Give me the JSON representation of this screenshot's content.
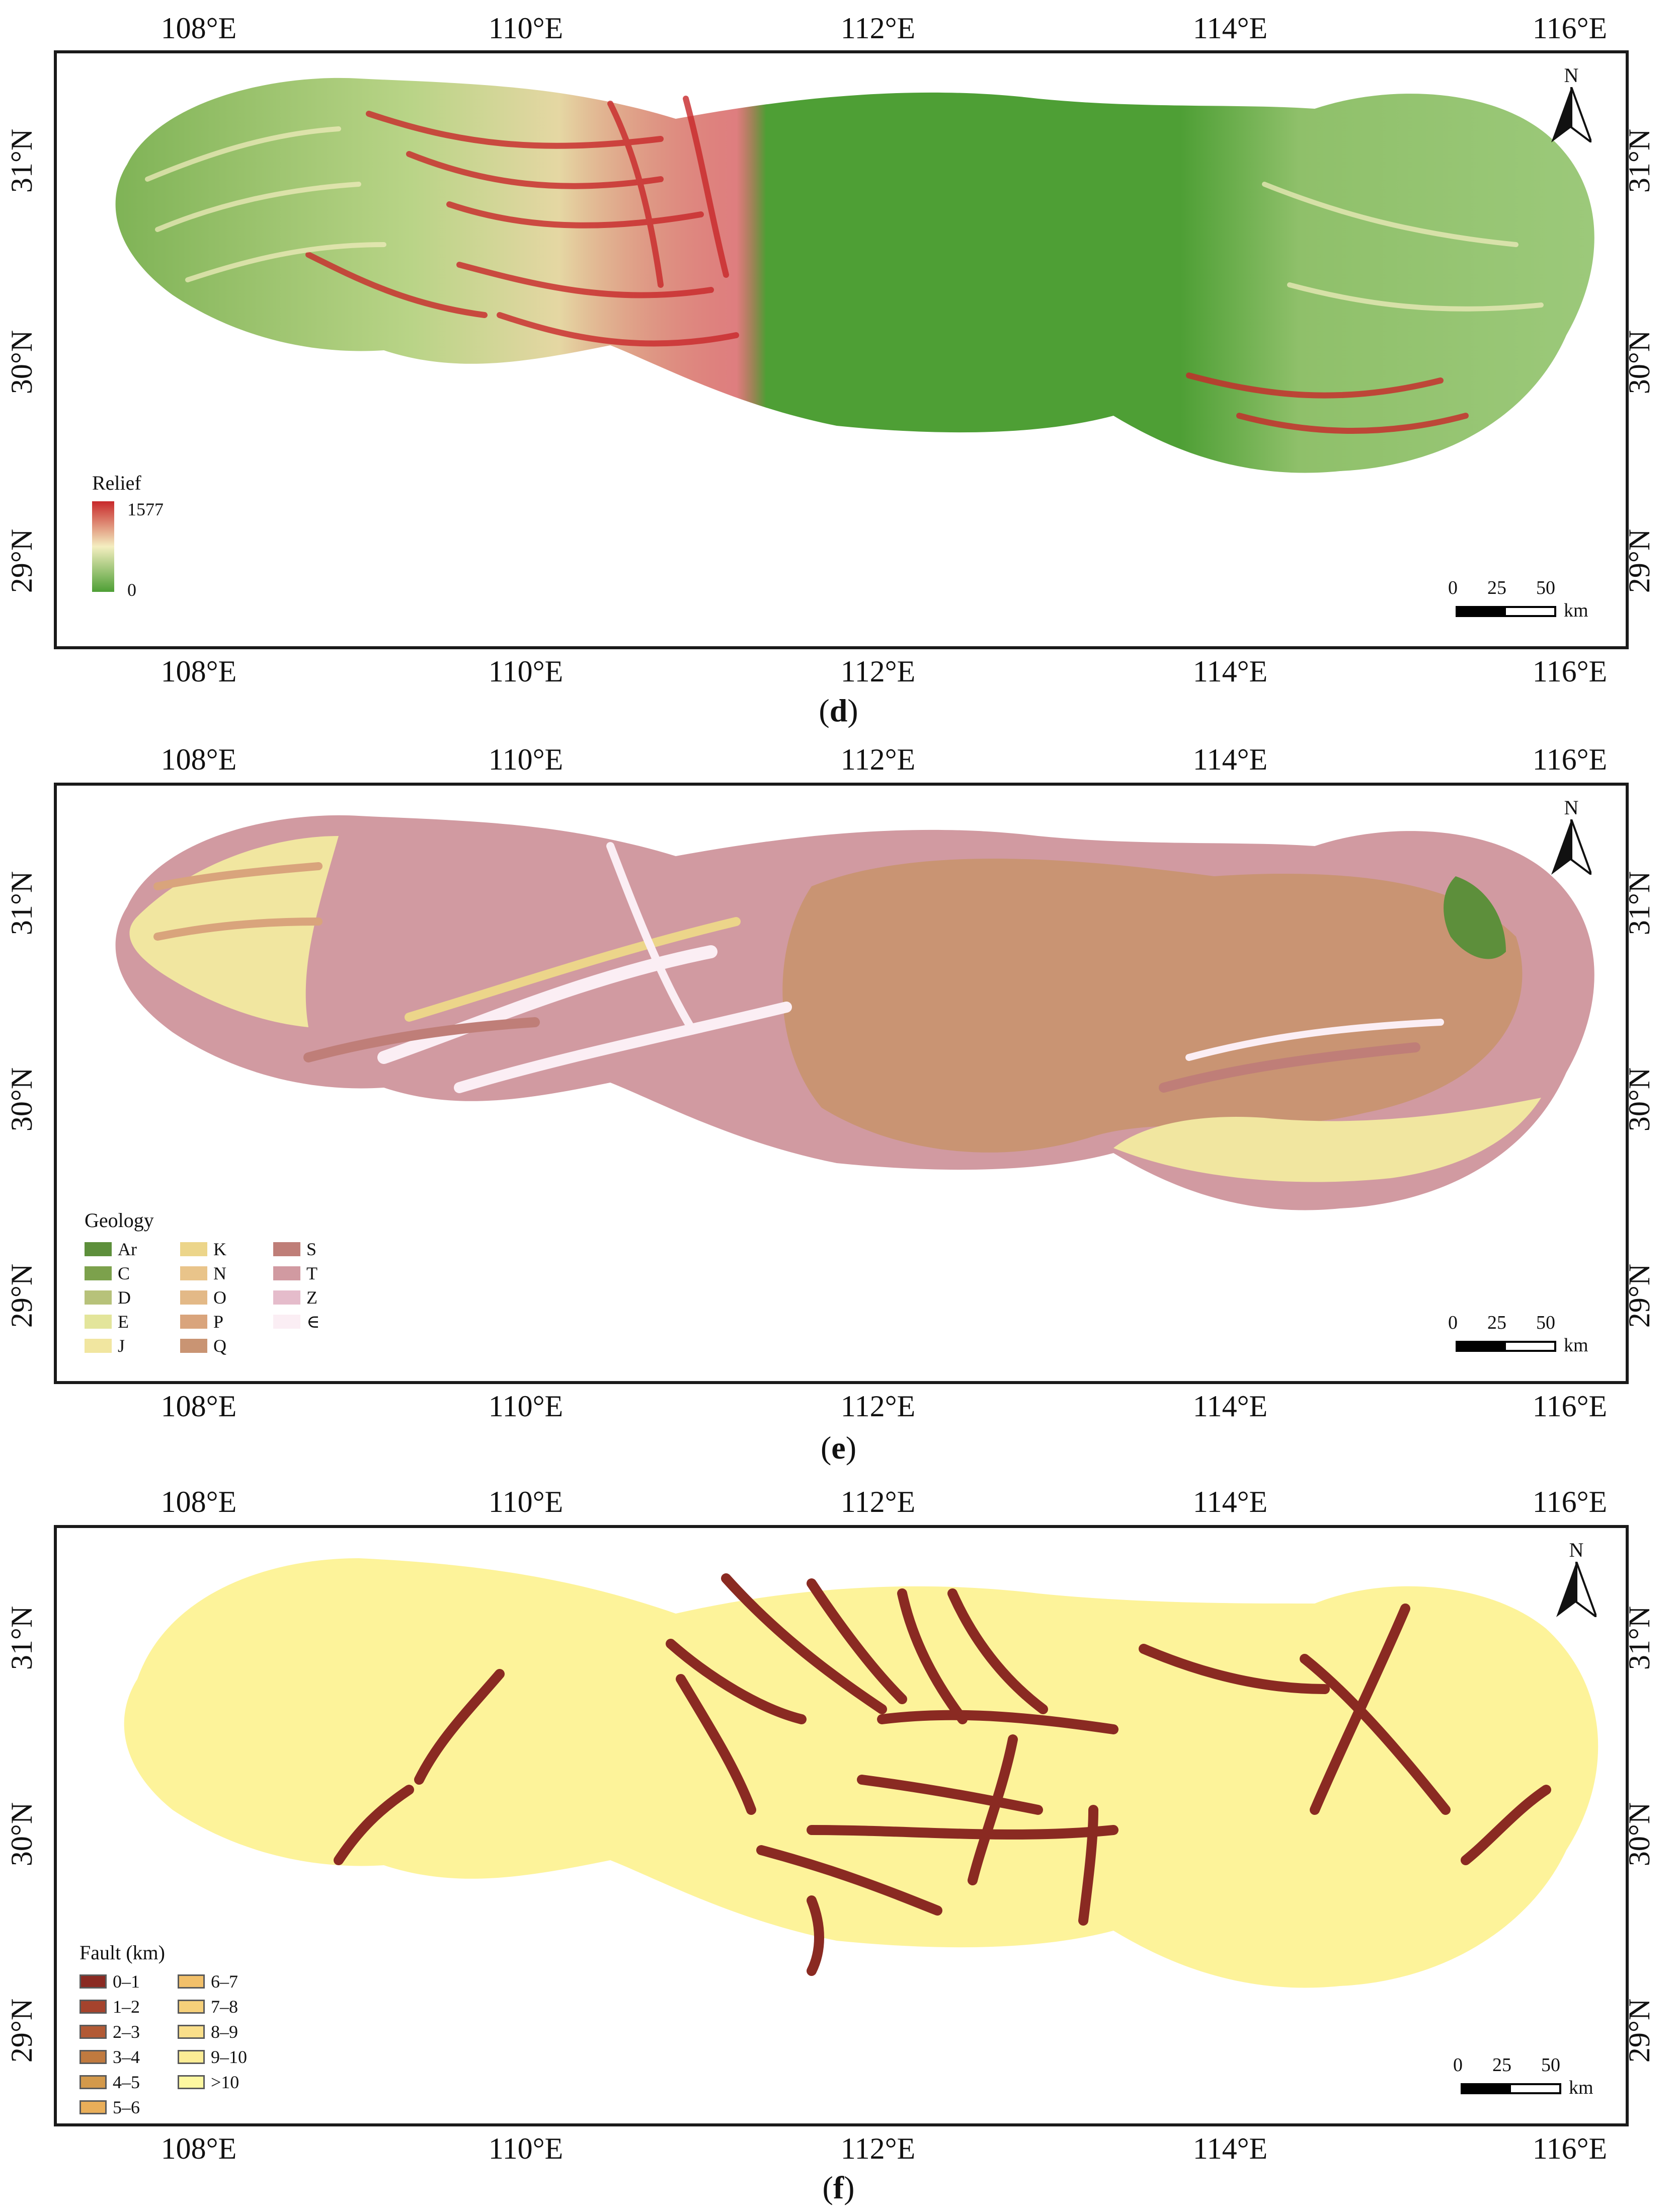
{
  "lon_ticks": [
    "108°E",
    "110°E",
    "112°E",
    "114°E",
    "116°E"
  ],
  "lat_ticks": [
    "29°N",
    "30°N",
    "31°N"
  ],
  "north_label": "N",
  "scale": {
    "labels": [
      "0",
      "25",
      "50"
    ],
    "unit": "km"
  },
  "panels": {
    "d": {
      "caption_open": "(",
      "caption_letter": "d",
      "caption_close": ")",
      "legend_title": "Relief",
      "legend_max": "1577",
      "legend_min": "0",
      "colors": {
        "high": "#c8282a",
        "mid": "#f4eec0",
        "low": "#4e9f35"
      }
    },
    "e": {
      "caption_open": "(",
      "caption_letter": "e",
      "caption_close": ")",
      "legend_title": "Geology",
      "units": [
        {
          "code": "Ar",
          "color": "#5d8f3b"
        },
        {
          "code": "C",
          "color": "#7ca14c"
        },
        {
          "code": "D",
          "color": "#b7c27a"
        },
        {
          "code": "E",
          "color": "#e3e59b"
        },
        {
          "code": "J",
          "color": "#f1e6a0"
        },
        {
          "code": "K",
          "color": "#ecd58a"
        },
        {
          "code": "N",
          "color": "#e9c48a"
        },
        {
          "code": "O",
          "color": "#e3b987"
        },
        {
          "code": "P",
          "color": "#d9a47c"
        },
        {
          "code": "Q",
          "color": "#c99473"
        },
        {
          "code": "S",
          "color": "#bf7e78"
        },
        {
          "code": "T",
          "color": "#d19aa1"
        },
        {
          "code": "Z",
          "color": "#e5bccb"
        },
        {
          "code": "∈",
          "color": "#fbeef4"
        }
      ]
    },
    "f": {
      "caption_open": "(",
      "caption_letter": "f",
      "caption_close": ")",
      "legend_title": "Fault (km)",
      "classes": [
        {
          "label": "0–1",
          "color": "#8a2a22"
        },
        {
          "label": "1–2",
          "color": "#a5432d"
        },
        {
          "label": "2–3",
          "color": "#b25a35"
        },
        {
          "label": "3–4",
          "color": "#c07a3f"
        },
        {
          "label": "4–5",
          "color": "#d3994b"
        },
        {
          "label": "5–6",
          "color": "#e9ae59"
        },
        {
          "label": "6–7",
          "color": "#f2c06a"
        },
        {
          "label": "7–8",
          "color": "#f6d07a"
        },
        {
          "label": "8–9",
          "color": "#fadf8a"
        },
        {
          "label": "9–10",
          "color": "#fcec95"
        },
        {
          "label": ">10",
          "color": "#fdf7a0"
        }
      ],
      "background_color": "#fdf39a",
      "fault_color": "#8a2a22"
    }
  }
}
